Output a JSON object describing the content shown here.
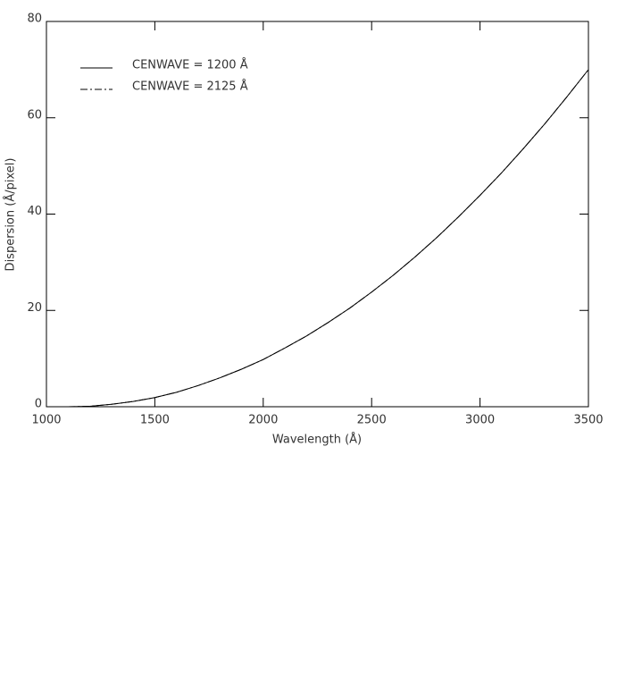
{
  "chart_data": {
    "type": "line",
    "xlabel": "Wavelength (Å)",
    "ylabel": "Dispersion (Å/pixel)",
    "x": [
      1100,
      1200,
      1300,
      1400,
      1500,
      1600,
      1700,
      1800,
      1900,
      2000,
      2100,
      2200,
      2300,
      2400,
      2500,
      2600,
      2700,
      2800,
      2900,
      3000,
      3100,
      3200,
      3300,
      3400,
      3500
    ],
    "series": [
      {
        "name": "CENWAVE = 1200 Å",
        "color": "#000000",
        "linestyle": "solid",
        "values": [
          0,
          0.1,
          0.5,
          1.1,
          1.9,
          3.0,
          4.4,
          6.0,
          7.8,
          9.8,
          12.2,
          14.7,
          17.5,
          20.5,
          23.8,
          27.3,
          31.1,
          35.1,
          39.4,
          43.9,
          48.6,
          53.6,
          58.8,
          64.3,
          70.0
        ]
      },
      {
        "name": "CENWAVE = 2125 Å",
        "color": "#000000",
        "linestyle": "dashdot",
        "values": [
          0,
          0.1,
          0.5,
          1.1,
          1.9,
          3.0,
          4.4,
          6.0,
          7.8,
          9.8,
          12.2,
          14.7,
          17.5,
          20.5,
          23.8,
          27.3,
          31.1,
          35.1,
          39.4,
          43.9,
          48.6,
          53.6,
          58.8,
          64.3,
          70.0
        ]
      }
    ],
    "xlim": [
      1000,
      3500
    ],
    "xticks": [
      1000,
      1500,
      2000,
      2500,
      3000,
      3500
    ],
    "ylim": [
      0,
      80
    ],
    "yticks": [
      0,
      20,
      40,
      60,
      80
    ],
    "legend": "upper left",
    "grid": false
  }
}
